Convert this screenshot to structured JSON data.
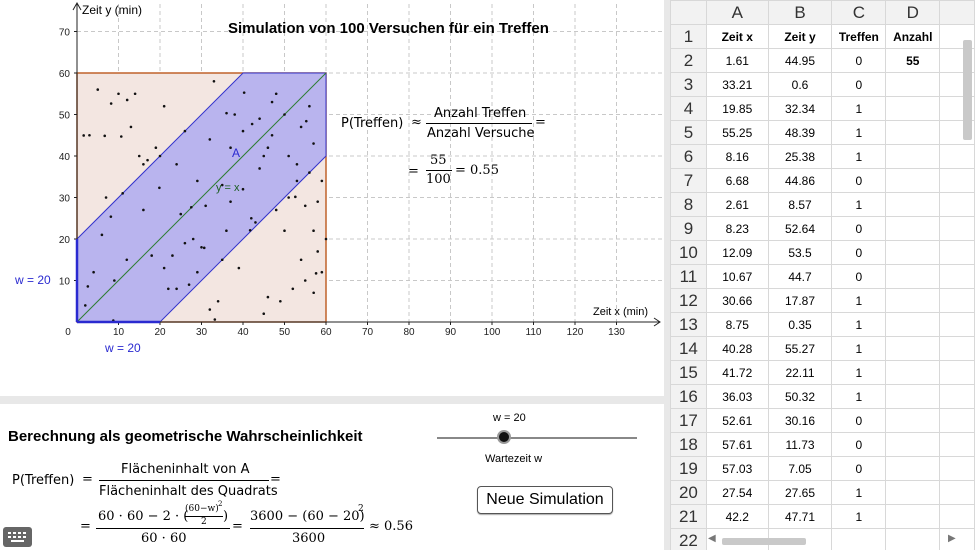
{
  "graphics": {
    "title": "Simulation von 100 Versuchen für ein Treffen",
    "x_axis_label": "Zeit x (min)",
    "y_axis_label": "Zeit y (min)",
    "x_ticks": [
      "0",
      "10",
      "20",
      "30",
      "40",
      "50",
      "60",
      "70",
      "80",
      "90",
      "100",
      "110",
      "120",
      "130"
    ],
    "y_ticks": [
      "10",
      "20",
      "30",
      "40",
      "50",
      "60",
      "70"
    ],
    "w_label_x": "w = 20",
    "w_label_y": "w = 20",
    "line_label": "y = x",
    "point_label": "A",
    "prob_lhs": "P(Treffen)",
    "prob_num": "Anzahl Treffen",
    "prob_den": "Anzahl Versuche",
    "frac_num": "55",
    "frac_den": "100",
    "frac_result": "= 0.55",
    "colors": {
      "square_fill": "#f3e6e1",
      "square_stroke": "#c0622a",
      "band_fill": "#b9b4ee",
      "band_stroke": "#3333cc",
      "diagonal": "#2e7d32",
      "w_label": "#2a2ad0"
    }
  },
  "points": [
    [
      1.61,
      44.95
    ],
    [
      33.21,
      0.6
    ],
    [
      19.85,
      32.34
    ],
    [
      55.25,
      48.39
    ],
    [
      8.16,
      25.38
    ],
    [
      6.68,
      44.86
    ],
    [
      2.61,
      8.57
    ],
    [
      8.23,
      52.64
    ],
    [
      12.09,
      53.5
    ],
    [
      10.67,
      44.7
    ],
    [
      30.66,
      17.87
    ],
    [
      8.75,
      0.35
    ],
    [
      40.28,
      55.27
    ],
    [
      41.72,
      22.11
    ],
    [
      36.03,
      50.32
    ],
    [
      52.61,
      30.16
    ],
    [
      57.61,
      11.73
    ],
    [
      57.03,
      7.05
    ],
    [
      27.54,
      27.65
    ],
    [
      42.2,
      47.71
    ],
    [
      3,
      45
    ],
    [
      5,
      56
    ],
    [
      10,
      55
    ],
    [
      14,
      55
    ],
    [
      15,
      40
    ],
    [
      16,
      38
    ],
    [
      17,
      39
    ],
    [
      19,
      42
    ],
    [
      20,
      40
    ],
    [
      21,
      13
    ],
    [
      22,
      8
    ],
    [
      23,
      16
    ],
    [
      24,
      38
    ],
    [
      26,
      46
    ],
    [
      28,
      20
    ],
    [
      30,
      18
    ],
    [
      31,
      28
    ],
    [
      32,
      3
    ],
    [
      33,
      58
    ],
    [
      34,
      5
    ],
    [
      35,
      15
    ],
    [
      36,
      22
    ],
    [
      38,
      50
    ],
    [
      40,
      46
    ],
    [
      42,
      25
    ],
    [
      44,
      37
    ],
    [
      45,
      40
    ],
    [
      46,
      42
    ],
    [
      47,
      53
    ],
    [
      48,
      55
    ],
    [
      49,
      5
    ],
    [
      50,
      50
    ],
    [
      51,
      40
    ],
    [
      52,
      8
    ],
    [
      53,
      38
    ],
    [
      54,
      15
    ],
    [
      55,
      28
    ],
    [
      56,
      52
    ],
    [
      57,
      22
    ],
    [
      58,
      29
    ],
    [
      59,
      12
    ],
    [
      60,
      20
    ],
    [
      2,
      4
    ],
    [
      4,
      12
    ],
    [
      6,
      21
    ],
    [
      9,
      10
    ],
    [
      11,
      31
    ],
    [
      13,
      47
    ],
    [
      18,
      16
    ],
    [
      25,
      26
    ],
    [
      27,
      9
    ],
    [
      29,
      34
    ],
    [
      37,
      42
    ],
    [
      39,
      13
    ],
    [
      43,
      24
    ],
    [
      46,
      6
    ],
    [
      48,
      27
    ],
    [
      50,
      22
    ],
    [
      53,
      34
    ],
    [
      55,
      10
    ],
    [
      57,
      43
    ],
    [
      59,
      34
    ],
    [
      7,
      30
    ],
    [
      12,
      15
    ],
    [
      16,
      27
    ],
    [
      21,
      52
    ],
    [
      24,
      8
    ],
    [
      26,
      19
    ],
    [
      29,
      12
    ],
    [
      32,
      44
    ],
    [
      35,
      33
    ],
    [
      37,
      29
    ],
    [
      40,
      32
    ],
    [
      44,
      49
    ],
    [
      47,
      45
    ],
    [
      51,
      30
    ],
    [
      54,
      47
    ],
    [
      56,
      36
    ],
    [
      58,
      17
    ],
    [
      45,
      2
    ]
  ],
  "lower": {
    "heading": "Berechnung als geometrische Wahrscheinlichkeit",
    "slider_label": "w = 20",
    "slider_caption": "Wartezeit w",
    "slider_value": 20,
    "slider_min": 0,
    "slider_max": 60,
    "formula_lhs": "P(Treffen)",
    "formula_num": "Flächeninhalt von A",
    "formula_den": "Flächeninhalt des Quadrats",
    "expr_num_a": "60 · 60 − 2 · (",
    "expr_inner_num": "(60−w)",
    "expr_inner_den": "2",
    "expr_den": "60 · 60",
    "expr2_num": "3600 − (60 − 20)",
    "expr2_den": "3600",
    "result": "≈ 0.56",
    "button": "Neue Simulation"
  },
  "sheet": {
    "columns": [
      "A",
      "B",
      "C",
      "D"
    ],
    "headers": [
      "Zeit x",
      "Zeit y",
      "Treffen",
      "Anzahl"
    ],
    "anzahl": "55",
    "rows": [
      [
        "1.61",
        "44.95",
        "0"
      ],
      [
        "33.21",
        "0.6",
        "0"
      ],
      [
        "19.85",
        "32.34",
        "1"
      ],
      [
        "55.25",
        "48.39",
        "1"
      ],
      [
        "8.16",
        "25.38",
        "1"
      ],
      [
        "6.68",
        "44.86",
        "0"
      ],
      [
        "2.61",
        "8.57",
        "1"
      ],
      [
        "8.23",
        "52.64",
        "0"
      ],
      [
        "12.09",
        "53.5",
        "0"
      ],
      [
        "10.67",
        "44.7",
        "0"
      ],
      [
        "30.66",
        "17.87",
        "1"
      ],
      [
        "8.75",
        "0.35",
        "1"
      ],
      [
        "40.28",
        "55.27",
        "1"
      ],
      [
        "41.72",
        "22.11",
        "1"
      ],
      [
        "36.03",
        "50.32",
        "1"
      ],
      [
        "52.61",
        "30.16",
        "0"
      ],
      [
        "57.61",
        "11.73",
        "0"
      ],
      [
        "57.03",
        "7.05",
        "0"
      ],
      [
        "27.54",
        "27.65",
        "1"
      ],
      [
        "42.2",
        "47.71",
        "1"
      ]
    ],
    "last_row": "22"
  }
}
